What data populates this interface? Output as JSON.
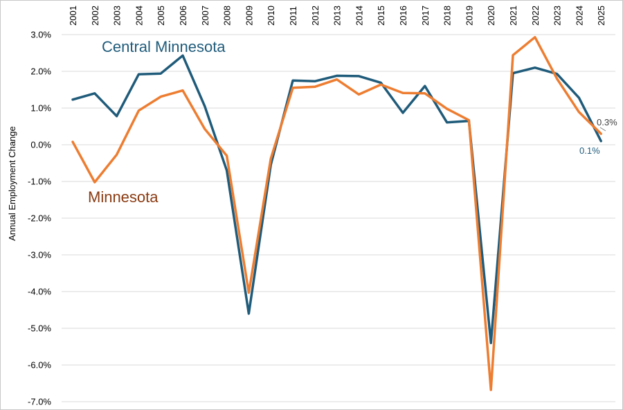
{
  "chart_data": {
    "type": "line",
    "ylabel": "Annual Employment Change",
    "x": [
      "2001",
      "2002",
      "2003",
      "2004",
      "2005",
      "2006",
      "2007",
      "2008",
      "2009",
      "2010",
      "2011",
      "2012",
      "2013",
      "2014",
      "2015",
      "2016",
      "2017",
      "2018",
      "2019",
      "2020",
      "2021",
      "2022",
      "2023",
      "2024",
      "2025"
    ],
    "ylim": [
      -7.0,
      3.0
    ],
    "yticks": [
      "3.0%",
      "2.0%",
      "1.0%",
      "0.0%",
      "-1.0%",
      "-2.0%",
      "-3.0%",
      "-4.0%",
      "-5.0%",
      "-6.0%",
      "-7.0%"
    ],
    "ytick_values": [
      3.0,
      2.0,
      1.0,
      0.0,
      -1.0,
      -2.0,
      -3.0,
      -4.0,
      -5.0,
      -6.0,
      -7.0
    ],
    "grid": true,
    "series": [
      {
        "name": "Central Minnesota",
        "color": "#1f5b7a",
        "values": [
          1.23,
          1.4,
          0.78,
          1.92,
          1.94,
          2.43,
          1.05,
          -0.7,
          -4.6,
          -0.55,
          1.75,
          1.73,
          1.88,
          1.87,
          1.69,
          0.87,
          1.6,
          0.61,
          0.65,
          -5.4,
          1.95,
          2.1,
          1.93,
          1.28,
          0.1
        ],
        "end_label": "0.1%"
      },
      {
        "name": "Minnesota",
        "color": "#ed7d31",
        "values": [
          0.08,
          -1.02,
          -0.27,
          0.93,
          1.31,
          1.48,
          0.43,
          -0.3,
          -4.03,
          -0.38,
          1.55,
          1.58,
          1.78,
          1.37,
          1.64,
          1.41,
          1.4,
          0.98,
          0.67,
          -6.68,
          2.44,
          2.93,
          1.8,
          0.89,
          0.3
        ],
        "end_label": "0.3%"
      }
    ],
    "label_colors": {
      "central_label": "#1f5b7a",
      "minnesota_label": "#8a3b12",
      "minnesota_end_label": "#404040"
    }
  }
}
